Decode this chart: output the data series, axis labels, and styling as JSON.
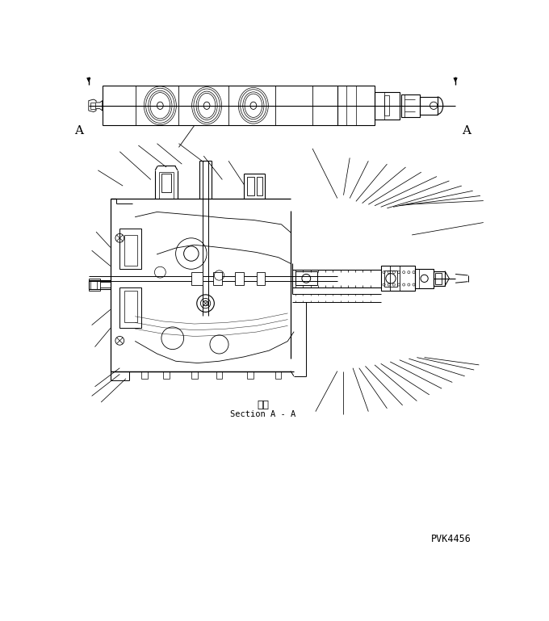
{
  "figure_width": 6.8,
  "figure_height": 7.69,
  "dpi": 100,
  "bg": "#ffffff",
  "lc": "#000000",
  "section_jp": "断面",
  "section_en": "Section A - A",
  "part_num": "PVK4456"
}
